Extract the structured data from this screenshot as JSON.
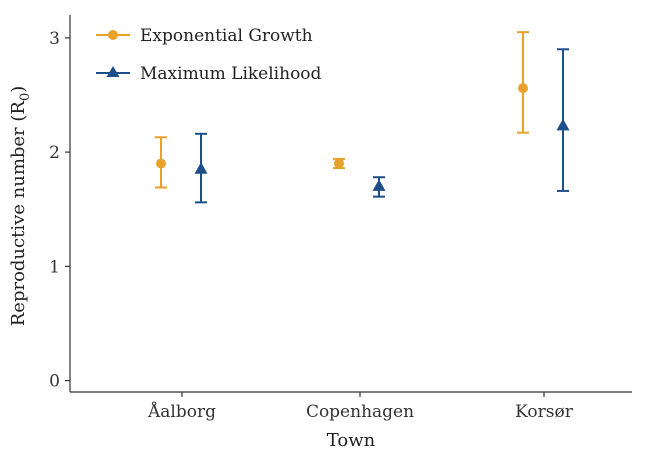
{
  "chart_data": {
    "type": "scatter",
    "xlabel": "Town",
    "ylabel": "Reproductive number (R",
    "ylabel_sub": "0",
    "ylabel_close": ")",
    "categories": [
      "Åalborg",
      "Copenhagen",
      "Korsør"
    ],
    "ylim": [
      -0.1,
      3.2
    ],
    "yticks": [
      0,
      1,
      2,
      3
    ],
    "grid": false,
    "legend_position": "top-left",
    "series": [
      {
        "name": "Exponential Growth",
        "color": "#E9A12A",
        "marker": "circle",
        "values": [
          1.9,
          1.9,
          2.56
        ],
        "lower": [
          1.69,
          1.86,
          2.17
        ],
        "upper": [
          2.13,
          1.94,
          3.05
        ]
      },
      {
        "name": "Maximum Likelihood",
        "color": "#1D4E89",
        "marker": "triangle",
        "values": [
          1.85,
          1.7,
          2.23
        ],
        "lower": [
          1.56,
          1.61,
          1.66
        ],
        "upper": [
          2.16,
          1.78,
          2.9
        ]
      }
    ]
  }
}
